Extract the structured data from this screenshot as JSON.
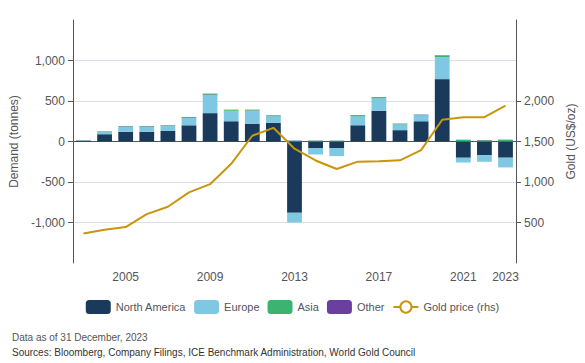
{
  "chart_data": {
    "type": "bar",
    "categories": [
      null,
      null,
      "2005",
      null,
      null,
      null,
      "2009",
      null,
      null,
      null,
      "2013",
      null,
      null,
      null,
      "2017",
      null,
      null,
      null,
      "2021",
      null,
      "2023"
    ],
    "series": [
      {
        "name": "North America",
        "type": "bar",
        "color": "#1a3a5c",
        "values": [
          10,
          90,
          120,
          120,
          130,
          200,
          350,
          250,
          220,
          230,
          -880,
          -80,
          -80,
          200,
          380,
          140,
          250,
          770,
          -200,
          -170,
          -200
        ]
      },
      {
        "name": "Europe",
        "type": "bar",
        "color": "#7ec8e3",
        "values": [
          5,
          30,
          60,
          60,
          60,
          90,
          220,
          130,
          160,
          80,
          -120,
          -80,
          -100,
          110,
          150,
          70,
          70,
          270,
          -60,
          -80,
          -120
        ]
      },
      {
        "name": "Asia",
        "type": "bar",
        "color": "#3cb371",
        "values": [
          2,
          5,
          8,
          8,
          8,
          10,
          15,
          10,
          10,
          10,
          10,
          10,
          10,
          15,
          15,
          10,
          10,
          20,
          20,
          15,
          20
        ]
      },
      {
        "name": "Other",
        "type": "bar",
        "color": "#6b3fa0",
        "values": [
          1,
          2,
          3,
          3,
          3,
          3,
          5,
          3,
          3,
          3,
          3,
          2,
          2,
          3,
          3,
          2,
          2,
          5,
          3,
          3,
          3
        ]
      },
      {
        "name": "Gold price (rhs)",
        "type": "line",
        "axis": "y2",
        "color": "#c8960c",
        "values": [
          363,
          410,
          444,
          604,
          695,
          872,
          973,
          1225,
          1571,
          1669,
          1411,
          1266,
          1160,
          1251,
          1257,
          1268,
          1393,
          1769,
          1798,
          1800,
          1943
        ]
      }
    ],
    "stacked": true,
    "ylabel": "Demand (tonnes)",
    "y2label": "Gold (US$/oz)",
    "ylim": [
      -1500,
      1500
    ],
    "yticks": [
      -1000,
      -500,
      0,
      500,
      1000
    ],
    "y2lim": [
      0,
      3000
    ],
    "y2ticks": [
      500,
      1000,
      1500,
      2000
    ],
    "grid": true,
    "legend": "bottom",
    "annotations": [
      "Data as of 31 December, 2023",
      "Sources: Bloomberg, Company Filings, ICE Benchmark Administration, World Gold Council"
    ]
  }
}
